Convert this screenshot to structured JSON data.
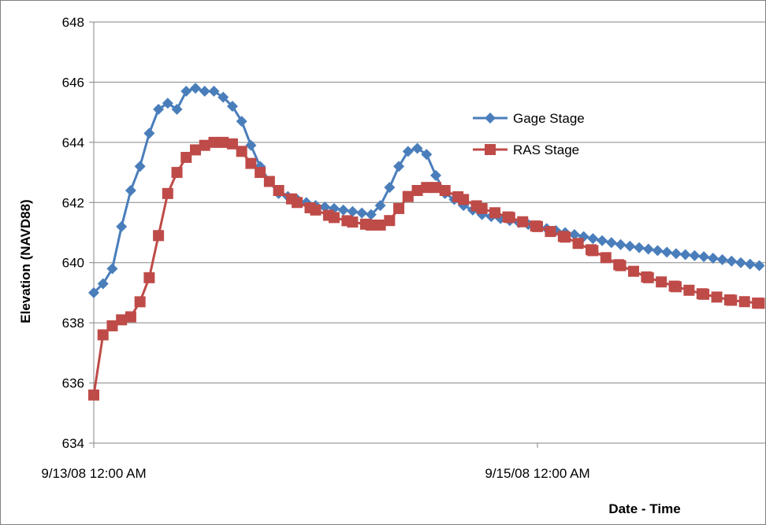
{
  "chart_data": {
    "type": "line",
    "title": "",
    "xlabel": "Date - Time",
    "ylabel": "Elevation (NAVD88)",
    "ylim": [
      634,
      648
    ],
    "yticks": [
      634,
      636,
      638,
      640,
      642,
      644,
      646,
      648
    ],
    "xlim": [
      0,
      72
    ],
    "x_unit": "hours from 9/13/08 12:00 AM",
    "xtick_labels": [
      {
        "x": 0,
        "label": "9/13/08 12:00 AM"
      },
      {
        "x": 48,
        "label": "9/15/08 12:00 AM"
      }
    ],
    "grid": "horizontal",
    "legend_position": "upper-right",
    "series": [
      {
        "name": "Gage Stage",
        "color": "#4a7ebb",
        "marker": "diamond",
        "points": [
          [
            0,
            639.0
          ],
          [
            1,
            639.3
          ],
          [
            2,
            639.8
          ],
          [
            3,
            641.2
          ],
          [
            4,
            642.4
          ],
          [
            5,
            643.2
          ],
          [
            6,
            644.3
          ],
          [
            7,
            645.1
          ],
          [
            8,
            645.3
          ],
          [
            9,
            645.1
          ],
          [
            10,
            645.7
          ],
          [
            11,
            645.8
          ],
          [
            12,
            645.7
          ],
          [
            13,
            645.7
          ],
          [
            14,
            645.5
          ],
          [
            15,
            645.2
          ],
          [
            16,
            644.7
          ],
          [
            17,
            643.9
          ],
          [
            18,
            643.2
          ],
          [
            19,
            642.7
          ],
          [
            20,
            642.3
          ],
          [
            22,
            642.1
          ],
          [
            24,
            641.9
          ],
          [
            26,
            641.8
          ],
          [
            28,
            641.7
          ],
          [
            30,
            641.6
          ],
          [
            31,
            641.9
          ],
          [
            32,
            642.5
          ],
          [
            33,
            643.2
          ],
          [
            34,
            643.7
          ],
          [
            35,
            643.8
          ],
          [
            36,
            643.6
          ],
          [
            37,
            642.9
          ],
          [
            38,
            642.3
          ],
          [
            40,
            641.9
          ],
          [
            42,
            641.6
          ],
          [
            45,
            641.4
          ],
          [
            48,
            641.2
          ],
          [
            51,
            641.0
          ],
          [
            54,
            640.8
          ],
          [
            57,
            640.6
          ],
          [
            60,
            640.45
          ],
          [
            63,
            640.3
          ],
          [
            66,
            640.2
          ],
          [
            69,
            640.05
          ],
          [
            72,
            639.9
          ]
        ]
      },
      {
        "name": "RAS Stage",
        "color": "#be4b48",
        "marker": "square",
        "points": [
          [
            0,
            635.6
          ],
          [
            1,
            637.6
          ],
          [
            2,
            637.9
          ],
          [
            3,
            638.1
          ],
          [
            4,
            638.2
          ],
          [
            5,
            638.7
          ],
          [
            6,
            639.5
          ],
          [
            7,
            640.9
          ],
          [
            8,
            642.3
          ],
          [
            9,
            643.0
          ],
          [
            10,
            643.5
          ],
          [
            11,
            643.75
          ],
          [
            12,
            643.9
          ],
          [
            13,
            644.0
          ],
          [
            14,
            644.0
          ],
          [
            15,
            643.95
          ],
          [
            16,
            643.7
          ],
          [
            17,
            643.3
          ],
          [
            18,
            643.0
          ],
          [
            19,
            642.7
          ],
          [
            20,
            642.4
          ],
          [
            22,
            642.0
          ],
          [
            24,
            641.75
          ],
          [
            26,
            641.5
          ],
          [
            28,
            641.35
          ],
          [
            30,
            641.25
          ],
          [
            31,
            641.25
          ],
          [
            32,
            641.4
          ],
          [
            33,
            641.8
          ],
          [
            34,
            642.2
          ],
          [
            35,
            642.4
          ],
          [
            36,
            642.5
          ],
          [
            37,
            642.5
          ],
          [
            38,
            642.4
          ],
          [
            40,
            642.1
          ],
          [
            42,
            641.8
          ],
          [
            45,
            641.5
          ],
          [
            48,
            641.2
          ],
          [
            51,
            640.85
          ],
          [
            54,
            640.4
          ],
          [
            57,
            639.9
          ],
          [
            60,
            639.5
          ],
          [
            63,
            639.2
          ],
          [
            66,
            638.95
          ],
          [
            69,
            638.75
          ],
          [
            72,
            638.65
          ]
        ]
      }
    ]
  }
}
